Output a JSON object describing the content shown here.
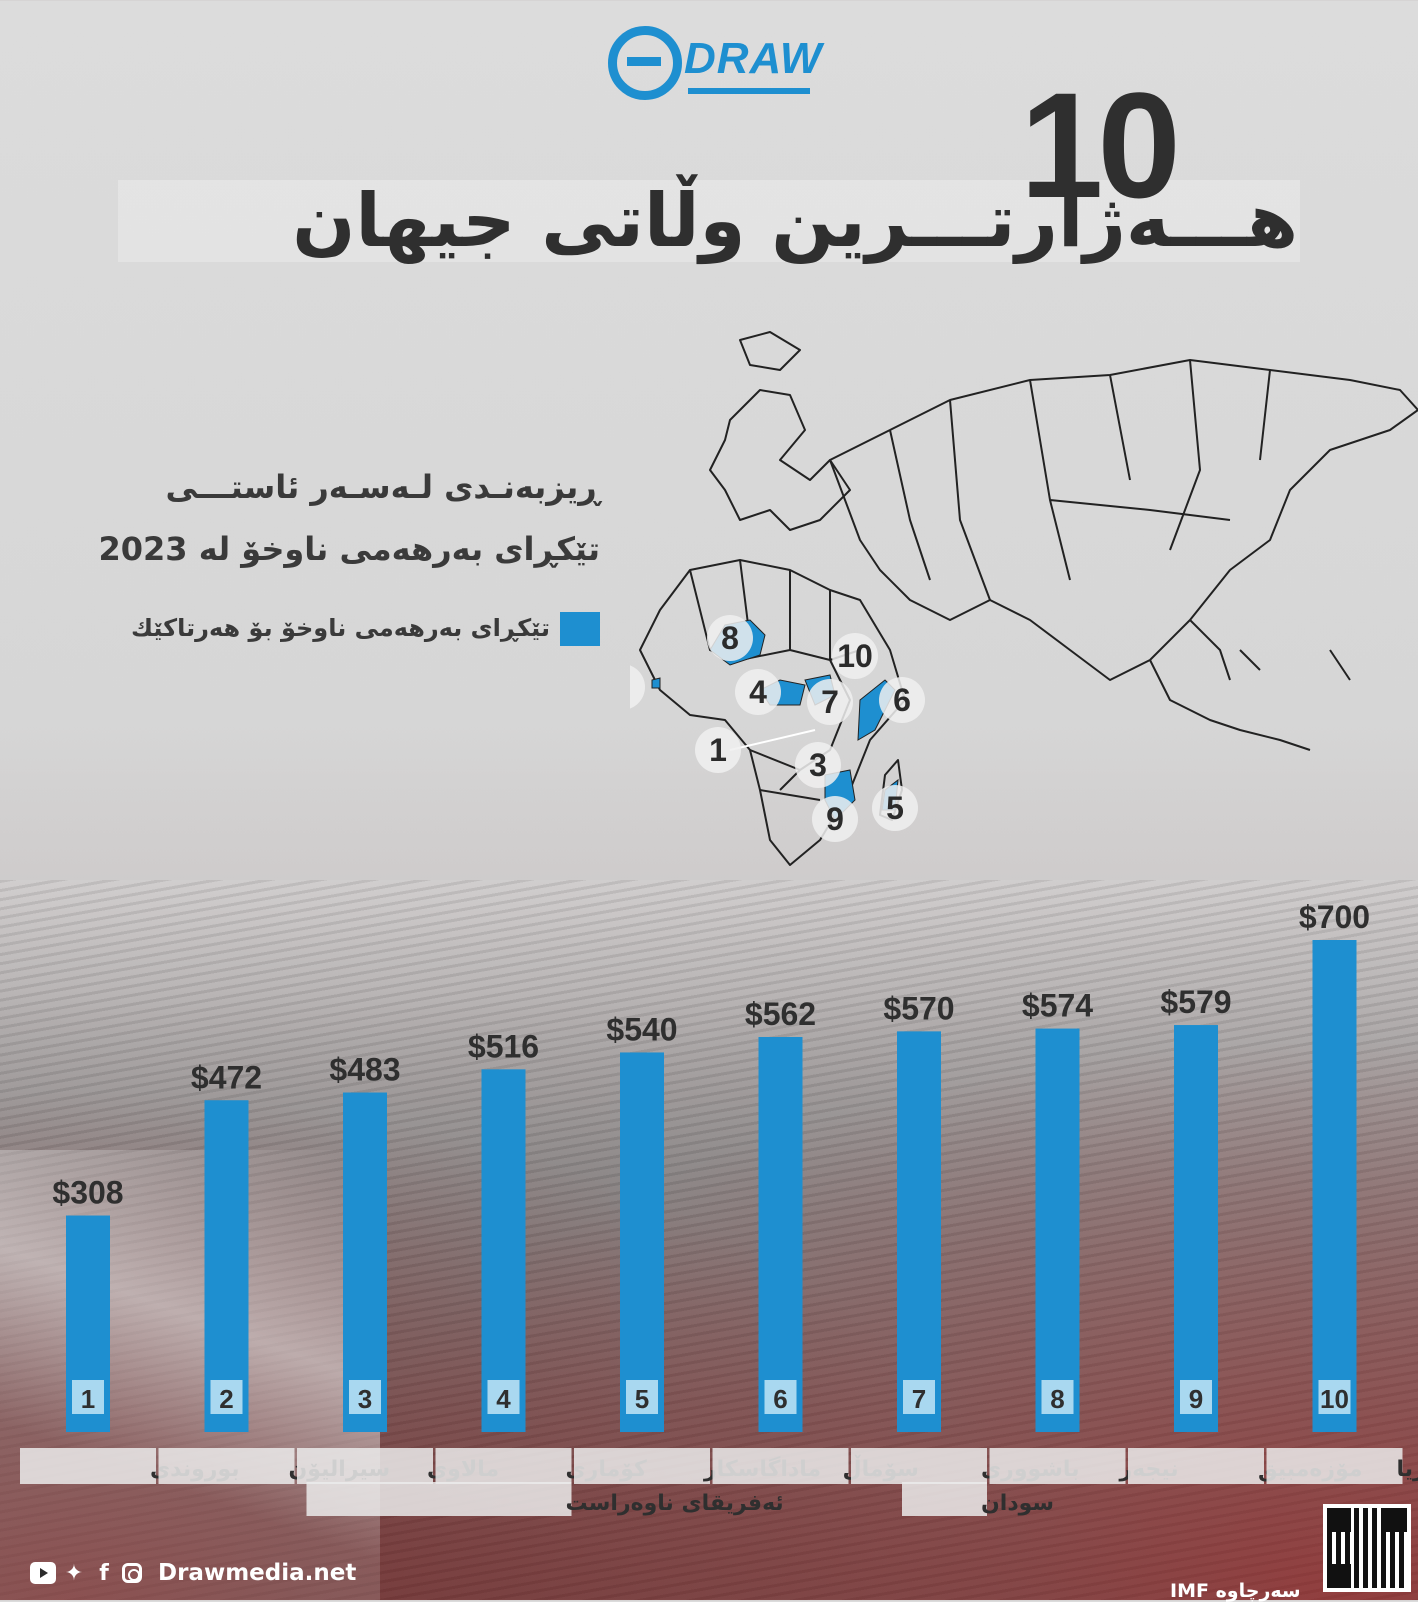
{
  "header": {
    "logo_text": "DRAW",
    "title_number": "10",
    "title_text": "هـــەژارتـــرین وڵاتی جیهان"
  },
  "subtitle": {
    "line1": "ڕیزبەنـدی لـەسـەر ئاستـــی",
    "line2": "تێکڕای بەرهەمی ناوخۆ لە 2023",
    "legend": "تێکڕای بەرهەمی ناوخۆ بۆ هەرتاکێك"
  },
  "colors": {
    "accent": "#1e8fd0",
    "light_accent": "#a9d8f0",
    "text": "#2f2f2f"
  },
  "map": {
    "markers": [
      "1",
      "2",
      "3",
      "4",
      "5",
      "6",
      "7",
      "8",
      "9",
      "10"
    ]
  },
  "chart_data": {
    "type": "bar",
    "categories": [
      "بوروندی",
      "سیرالیۆن",
      "مالاوی",
      "کۆماری ئەفریقای ناوەراست",
      "ماداگاسکار",
      "سۆماڵ",
      "باشووری سودان",
      "نیجەر",
      "مۆزەمبیق",
      "ئیریتریا"
    ],
    "category_lines": [
      [
        "بوروندی"
      ],
      [
        "سیرالیۆن"
      ],
      [
        "مالاوی"
      ],
      [
        "کۆماری",
        "ئەفریقای ناوەراست"
      ],
      [
        "ماداگاسکار"
      ],
      [
        "سۆماڵ"
      ],
      [
        "باشووری",
        "سودان"
      ],
      [
        "نیجەر"
      ],
      [
        "مۆزەمبیق"
      ],
      [
        "ئیریتریا"
      ]
    ],
    "ranks": [
      "1",
      "2",
      "3",
      "4",
      "5",
      "6",
      "7",
      "8",
      "9",
      "10"
    ],
    "values": [
      308,
      472,
      483,
      516,
      540,
      562,
      570,
      574,
      579,
      700
    ],
    "labels": [
      "$308",
      "$472",
      "$483",
      "$516",
      "$540",
      "$562",
      "$570",
      "$574",
      "$579",
      "$700"
    ],
    "ylim": [
      0,
      700
    ]
  },
  "footer": {
    "site": "Drawmedia.net",
    "source": "سەرچاوە IMF",
    "social_icons": [
      "youtube-icon",
      "twitter-icon",
      "facebook-icon",
      "instagram-icon"
    ]
  }
}
